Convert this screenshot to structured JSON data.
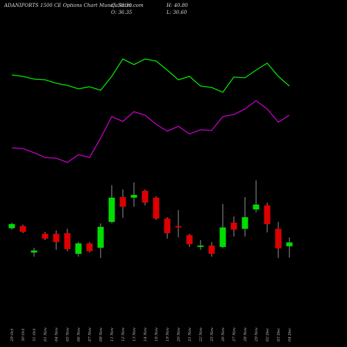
{
  "chart_data": {
    "type": "candlestick",
    "title": "ADANIPORTS 1500 CE Options Chart MunafaSutra.com",
    "ohlc_labels": [
      "C: 38.30",
      "H: 40.80",
      "O: 36.35",
      "L: 30.60"
    ],
    "categories": [
      "29 Oct",
      "30 Oct",
      "31 Oct",
      "01 Nov",
      "04 Nov",
      "05 Nov",
      "06 Nov",
      "07 Nov",
      "08 Nov",
      "11 Nov",
      "12 Nov",
      "13 Nov",
      "14 Nov",
      "18 Nov",
      "19 Nov",
      "20 Nov",
      "21 Nov",
      "22 Nov",
      "25 Nov",
      "26 Nov",
      "27 Nov",
      "28 Nov",
      "29 Nov",
      "02 Dec",
      "03 Dec",
      "04 Dec"
    ],
    "open": [
      45.5,
      46.6,
      33.2,
      42.7,
      42.7,
      43.0,
      32.5,
      37.8,
      35.6,
      48.7,
      61.3,
      61.0,
      64.5,
      61.0,
      50.4,
      46.6,
      42.0,
      36.0,
      36.7,
      36.0,
      48.3,
      45.2,
      55.0,
      57.1,
      45.2,
      36.35
    ],
    "high": [
      48.3,
      47.3,
      35.6,
      43.7,
      44.4,
      45.2,
      38.5,
      38.5,
      48.0,
      67.3,
      65.2,
      68.7,
      65.2,
      61.7,
      51.1,
      54.7,
      42.7,
      39.5,
      38.5,
      57.8,
      51.5,
      61.3,
      69.8,
      58.5,
      48.7,
      40.8
    ],
    "low": [
      44.8,
      43.0,
      31.1,
      39.5,
      34.6,
      33.9,
      31.1,
      33.2,
      30.4,
      48.0,
      50.8,
      56.4,
      57.1,
      49.7,
      40.2,
      40.9,
      36.0,
      34.6,
      31.1,
      35.3,
      41.3,
      41.3,
      53.6,
      43.4,
      30.4,
      30.6
    ],
    "close": [
      47.6,
      43.7,
      34.2,
      40.2,
      38.5,
      34.9,
      37.8,
      33.9,
      46.2,
      61.0,
      56.4,
      62.4,
      58.5,
      50.4,
      43.0,
      45.9,
      37.4,
      36.7,
      32.5,
      45.9,
      44.8,
      51.1,
      57.5,
      47.6,
      35.3,
      38.3
    ],
    "ylim": [
      27.5,
      71.5
    ],
    "up_color": "#00dd00",
    "down_color": "#dd0000",
    "series": [
      {
        "color": "#00ee00",
        "axis": "y2",
        "values": [
          142,
          140,
          136,
          135,
          130,
          127,
          122,
          125,
          120,
          140,
          165,
          157,
          165,
          162,
          149,
          135,
          140,
          126,
          124,
          117,
          139,
          138,
          149,
          159,
          140,
          126
        ]
      },
      {
        "color": "#cc00cc",
        "axis": "y2",
        "values": [
          37,
          36,
          30,
          23,
          22,
          16,
          27,
          23,
          51,
          82,
          75,
          89,
          84,
          71,
          61,
          68,
          57,
          63,
          62,
          82,
          85,
          93,
          105,
          93,
          74,
          84
        ]
      }
    ],
    "y2lim": [
      0,
      250
    ]
  }
}
